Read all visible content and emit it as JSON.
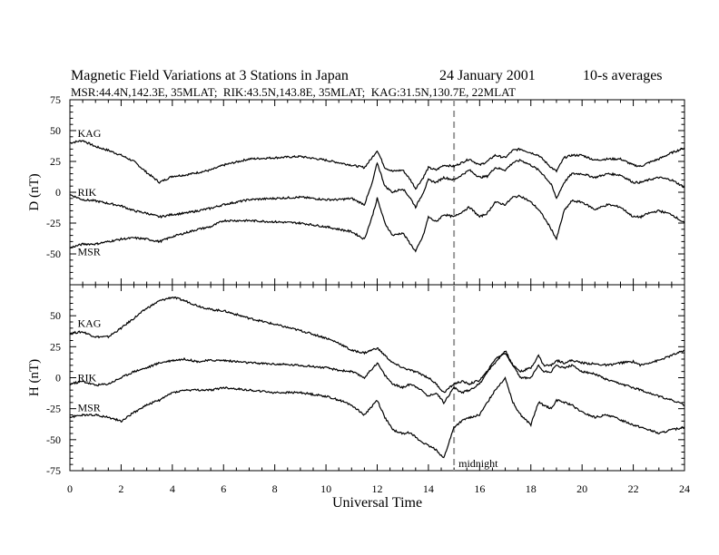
{
  "figure": {
    "title": "Magnetic Field Variations at 3 Stations in Japan",
    "date": "24 January 2001",
    "averaging": "10-s averages",
    "subtitle": "MSR:44.4N,142.3E, 35MLAT;  RIK:43.5N,143.8E, 35MLAT;  KAG:31.5N,130.7E, 22MLAT",
    "midnight_label": "midnight"
  },
  "chart_data": [
    {
      "type": "line",
      "panel": "D",
      "ylabel": "D (nT)",
      "xlabel": "",
      "xlim": [
        0,
        24
      ],
      "ylim": [
        -75,
        75
      ],
      "yticks": [
        75,
        50,
        25,
        0,
        -25,
        -50
      ],
      "midnight_x": 15,
      "series": [
        {
          "name": "KAG",
          "label_x": 0.3,
          "label_y": 45,
          "x": [
            0,
            0.5,
            1,
            1.5,
            2,
            2.5,
            3,
            3.5,
            4,
            4.5,
            5,
            5.5,
            6,
            7,
            8,
            9,
            10,
            10.5,
            11,
            11.5,
            11.8,
            12,
            12.3,
            12.6,
            13,
            13.3,
            13.5,
            13.8,
            14,
            14.3,
            14.6,
            15,
            15.3,
            15.6,
            16,
            16.3,
            16.6,
            17,
            17.3,
            17.6,
            18,
            18.3,
            18.5,
            18.8,
            19,
            19.3,
            19.6,
            20,
            20.5,
            21,
            21.5,
            22,
            22.3,
            22.6,
            23,
            23.5,
            24
          ],
          "y": [
            40,
            42,
            37,
            34,
            30,
            25,
            16,
            8,
            13,
            14,
            16,
            18,
            22,
            27,
            28,
            29,
            26,
            24,
            22,
            20,
            28,
            34,
            20,
            17,
            18,
            10,
            3,
            12,
            20,
            18,
            22,
            21,
            24,
            27,
            22,
            25,
            30,
            28,
            34,
            35,
            32,
            30,
            26,
            20,
            17,
            28,
            30,
            30,
            26,
            27,
            27,
            22,
            21,
            24,
            27,
            32,
            36
          ]
        },
        {
          "name": "RIK",
          "label_x": 0.3,
          "label_y": -3,
          "x": [
            0,
            0.5,
            1,
            1.5,
            2,
            2.5,
            3,
            3.5,
            4,
            4.5,
            5,
            5.5,
            6,
            7,
            8,
            9,
            10,
            10.5,
            11,
            11.5,
            11.8,
            12,
            12.3,
            12.6,
            13,
            13.3,
            13.5,
            13.8,
            14,
            14.3,
            14.6,
            15,
            15.3,
            15.6,
            16,
            16.3,
            16.6,
            17,
            17.3,
            17.6,
            18,
            18.3,
            18.5,
            18.8,
            19,
            19.3,
            19.6,
            20,
            20.5,
            21,
            21.5,
            22,
            22.3,
            22.6,
            23,
            23.5,
            24
          ],
          "y": [
            -2,
            -6,
            -7,
            -9,
            -11,
            -15,
            -17,
            -20,
            -18,
            -17,
            -15,
            -13,
            -10,
            -6,
            -5,
            -4,
            -6,
            -6,
            -5,
            -10,
            7,
            24,
            5,
            0,
            3,
            -5,
            -12,
            0,
            10,
            8,
            12,
            10,
            14,
            18,
            12,
            13,
            20,
            18,
            24,
            26,
            22,
            18,
            14,
            6,
            -5,
            8,
            15,
            15,
            12,
            15,
            14,
            8,
            8,
            10,
            12,
            10,
            4
          ]
        },
        {
          "name": "MSR",
          "label_x": 0.3,
          "label_y": -51,
          "x": [
            0,
            0.5,
            1,
            1.5,
            2,
            2.5,
            3,
            3.5,
            4,
            4.5,
            5,
            5.5,
            6,
            7,
            8,
            9,
            10,
            10.5,
            11,
            11.5,
            11.8,
            12,
            12.3,
            12.6,
            13,
            13.3,
            13.5,
            13.8,
            14,
            14.3,
            14.6,
            15,
            15.3,
            15.6,
            16,
            16.3,
            16.6,
            17,
            17.3,
            17.6,
            18,
            18.3,
            18.5,
            18.8,
            19,
            19.3,
            19.6,
            20,
            20.5,
            21,
            21.5,
            22,
            22.3,
            22.6,
            23,
            23.5,
            24
          ],
          "y": [
            -45,
            -42,
            -42,
            -40,
            -38,
            -37,
            -38,
            -40,
            -36,
            -33,
            -30,
            -28,
            -23,
            -23,
            -24,
            -25,
            -28,
            -30,
            -32,
            -38,
            -20,
            -5,
            -25,
            -35,
            -33,
            -42,
            -48,
            -35,
            -20,
            -24,
            -18,
            -20,
            -16,
            -12,
            -20,
            -17,
            -8,
            -10,
            -4,
            -3,
            -8,
            -14,
            -20,
            -30,
            -38,
            -15,
            -7,
            -8,
            -14,
            -10,
            -12,
            -20,
            -20,
            -17,
            -15,
            -18,
            -25
          ]
        }
      ]
    },
    {
      "type": "line",
      "panel": "H",
      "ylabel": "H (nT)",
      "xlabel": "Universal Time",
      "xlim": [
        0,
        24
      ],
      "ylim": [
        -75,
        75
      ],
      "xticks": [
        0,
        2,
        4,
        6,
        8,
        10,
        12,
        14,
        16,
        18,
        20,
        22,
        24
      ],
      "yticks": [
        50,
        25,
        0,
        -25,
        -50,
        -75
      ],
      "midnight_x": 15,
      "series": [
        {
          "name": "KAG",
          "label_x": 0.3,
          "label_y": 41,
          "x": [
            0,
            0.5,
            1,
            1.5,
            2,
            2.5,
            3,
            3.5,
            4,
            4.5,
            5,
            5.5,
            6,
            7,
            8,
            9,
            10,
            10.5,
            11,
            11.5,
            12,
            12.3,
            12.6,
            13,
            13.3,
            13.6,
            14,
            14.3,
            14.6,
            15,
            15.3,
            15.6,
            16,
            16.3,
            16.6,
            17,
            17.3,
            17.6,
            18,
            18.3,
            18.5,
            18.8,
            19,
            19.3,
            19.6,
            20,
            20.5,
            21,
            21.5,
            22,
            22.3,
            22.6,
            23,
            23.5,
            24
          ],
          "y": [
            36,
            37,
            33,
            33,
            40,
            48,
            56,
            62,
            65,
            62,
            58,
            55,
            54,
            48,
            43,
            38,
            32,
            28,
            22,
            20,
            24,
            18,
            12,
            8,
            6,
            4,
            0,
            -5,
            -12,
            -5,
            -3,
            -5,
            -2,
            5,
            15,
            20,
            10,
            5,
            8,
            18,
            10,
            10,
            14,
            12,
            14,
            12,
            11,
            10,
            12,
            13,
            10,
            12,
            14,
            18,
            22
          ]
        },
        {
          "name": "RIK",
          "label_x": 0.3,
          "label_y": -3,
          "x": [
            0,
            0.5,
            1,
            1.5,
            2,
            2.5,
            3,
            3.5,
            4,
            4.5,
            5,
            5.5,
            6,
            7,
            8,
            9,
            10,
            10.5,
            11,
            11.5,
            12,
            12.3,
            12.6,
            13,
            13.3,
            13.6,
            14,
            14.3,
            14.6,
            15,
            15.3,
            15.6,
            16,
            16.3,
            16.6,
            17,
            17.3,
            17.6,
            18,
            18.3,
            18.5,
            18.8,
            19,
            19.3,
            19.6,
            20,
            20.5,
            21,
            21.5,
            22,
            22.3,
            22.6,
            23,
            23.5,
            24
          ],
          "y": [
            -5,
            -3,
            -6,
            -5,
            0,
            5,
            8,
            12,
            14,
            15,
            13,
            14,
            14,
            12,
            11,
            10,
            8,
            6,
            5,
            0,
            12,
            2,
            -5,
            -8,
            -5,
            -8,
            -15,
            -12,
            -20,
            -8,
            -12,
            -10,
            -5,
            5,
            12,
            22,
            10,
            0,
            0,
            10,
            5,
            5,
            10,
            8,
            10,
            5,
            3,
            -2,
            -5,
            -8,
            -10,
            -12,
            -15,
            -18,
            -22
          ]
        },
        {
          "name": "MSR",
          "label_x": 0.3,
          "label_y": -27,
          "x": [
            0,
            0.5,
            1,
            1.5,
            2,
            2.5,
            3,
            3.5,
            4,
            4.5,
            5,
            5.5,
            6,
            7,
            8,
            9,
            10,
            10.5,
            11,
            11.5,
            12,
            12.3,
            12.6,
            13,
            13.3,
            13.6,
            14,
            14.3,
            14.6,
            15,
            15.3,
            15.6,
            16,
            16.3,
            16.6,
            17,
            17.3,
            17.6,
            18,
            18.3,
            18.5,
            18.8,
            19,
            19.3,
            19.6,
            20,
            20.5,
            21,
            21.5,
            22,
            22.3,
            22.6,
            23,
            23.5,
            24
          ],
          "y": [
            -32,
            -30,
            -30,
            -32,
            -35,
            -28,
            -22,
            -18,
            -12,
            -10,
            -10,
            -10,
            -8,
            -10,
            -12,
            -12,
            -15,
            -18,
            -22,
            -30,
            -18,
            -32,
            -42,
            -45,
            -44,
            -50,
            -55,
            -58,
            -65,
            -40,
            -35,
            -32,
            -30,
            -20,
            -10,
            0,
            -20,
            -30,
            -38,
            -20,
            -22,
            -25,
            -18,
            -20,
            -22,
            -28,
            -32,
            -30,
            -34,
            -38,
            -40,
            -42,
            -45,
            -42,
            -40
          ]
        }
      ]
    }
  ]
}
